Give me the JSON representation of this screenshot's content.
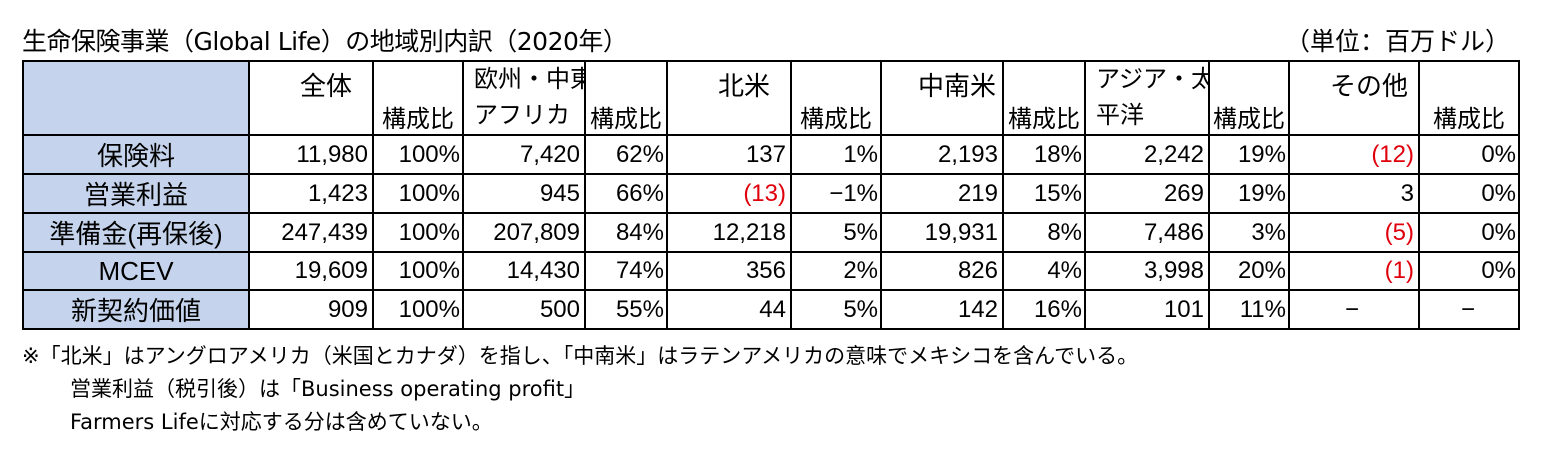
{
  "title": "生命保険事業（Global Life）の地域別内訳（2020年）",
  "unit": "（単位：百万ドル）",
  "table": {
    "regions": [
      {
        "name": "全体",
        "sub": "構成比"
      },
      {
        "name": "欧州・中東・\nアフリカ",
        "sub": "構成比"
      },
      {
        "name": "北米",
        "sub": "構成比"
      },
      {
        "name": "中南米",
        "sub": "構成比"
      },
      {
        "name": "アジア・太\n平洋",
        "sub": "構成比"
      },
      {
        "name": "その他",
        "sub": "構成比"
      }
    ],
    "rows": [
      {
        "label": "保険料",
        "cells": [
          "11,980",
          "100%",
          "7,420",
          "62%",
          "137",
          "1%",
          "2,193",
          "18%",
          "2,242",
          "19%",
          "(12)",
          "0%"
        ]
      },
      {
        "label": "営業利益",
        "cells": [
          "1,423",
          "100%",
          "945",
          "66%",
          "(13)",
          "−1%",
          "219",
          "15%",
          "269",
          "19%",
          "3",
          "0%"
        ]
      },
      {
        "label": "準備金(再保後)",
        "cells": [
          "247,439",
          "100%",
          "207,809",
          "84%",
          "12,218",
          "5%",
          "19,931",
          "8%",
          "7,486",
          "3%",
          "(5)",
          "0%"
        ]
      },
      {
        "label": "MCEV",
        "cells": [
          "19,609",
          "100%",
          "14,430",
          "74%",
          "356",
          "2%",
          "826",
          "4%",
          "3,998",
          "20%",
          "(1)",
          "0%"
        ]
      },
      {
        "label": "新契約価値",
        "cells": [
          "909",
          "100%",
          "500",
          "55%",
          "44",
          "5%",
          "142",
          "16%",
          "101",
          "11%",
          "−",
          "−"
        ]
      }
    ]
  },
  "notes": [
    "※「北米」はアングロアメリカ（米国とカナダ）を指し、「中南米」はラテンアメリカの意味でメキシコを含んでいる。",
    "営業利益（税引後）は「Business operating profit」",
    "Farmers Lifeに対応する分は含めていない。"
  ],
  "colors": {
    "header_fill": "#c5d4ec",
    "negative": "#e0000b"
  }
}
